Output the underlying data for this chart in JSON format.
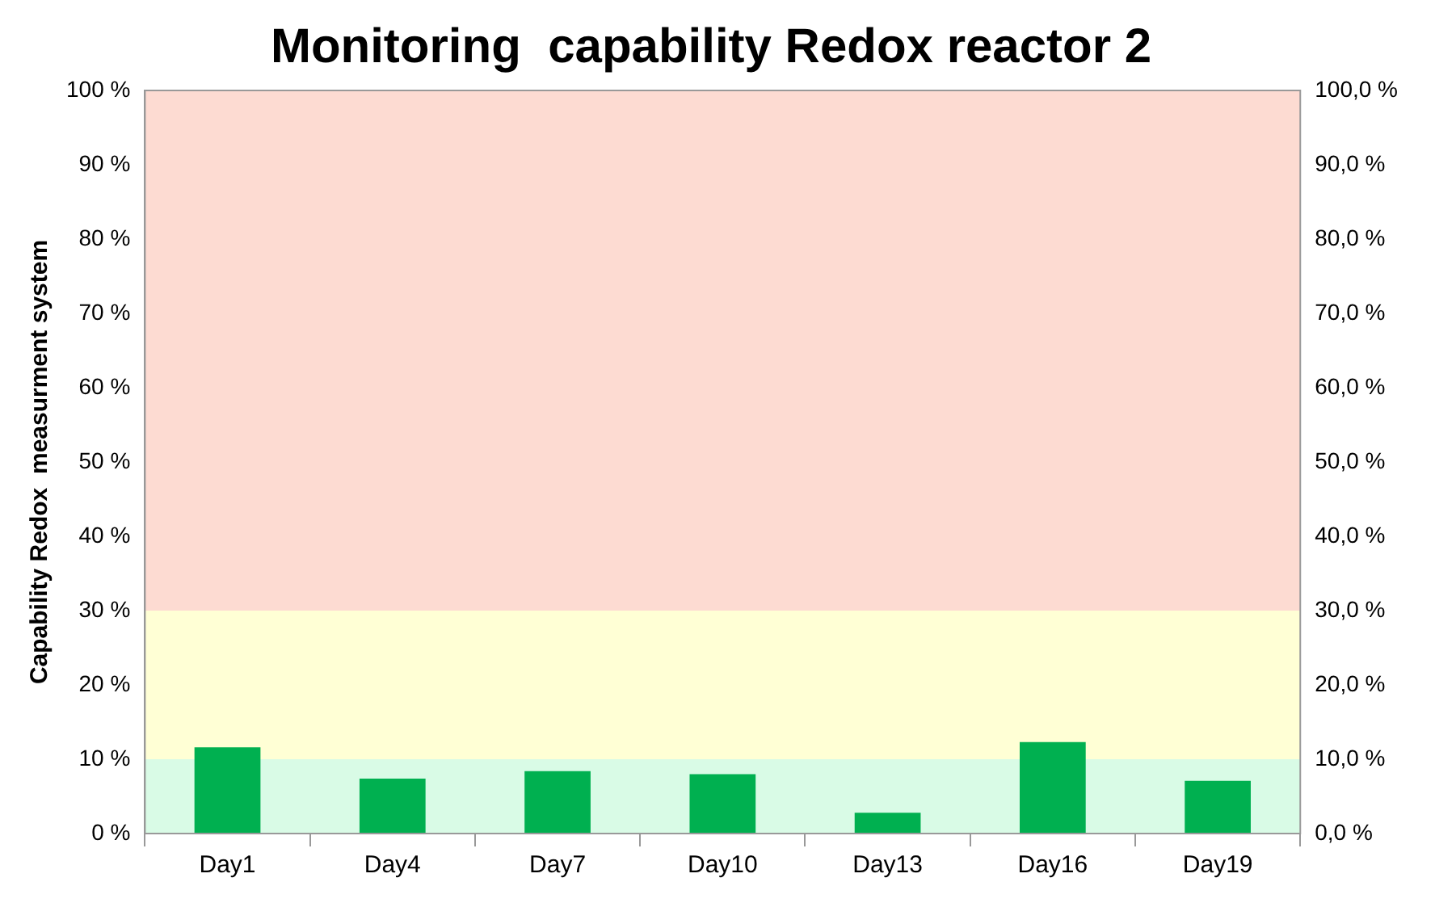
{
  "chart_data": {
    "type": "bar",
    "title": "Monitoring  capability Redox reactor 2",
    "ylabel": "Capability Redox  measurment system",
    "categories": [
      "Day1",
      "Day4",
      "Day7",
      "Day10",
      "Day13",
      "Day16",
      "Day19"
    ],
    "values": [
      11.6,
      7.4,
      8.4,
      8.0,
      2.8,
      12.3,
      7.1
    ],
    "color": "#00b050",
    "ylim": [
      0,
      100
    ],
    "yticks": [
      {
        "value": 0,
        "label": "0 %"
      },
      {
        "value": 10,
        "label": "10 %"
      },
      {
        "value": 20,
        "label": "20 %"
      },
      {
        "value": 30,
        "label": "30 %"
      },
      {
        "value": 40,
        "label": "40 %"
      },
      {
        "value": 50,
        "label": "50 %"
      },
      {
        "value": 60,
        "label": "60 %"
      },
      {
        "value": 70,
        "label": "70 %"
      },
      {
        "value": 80,
        "label": "80 %"
      },
      {
        "value": 90,
        "label": "90 %"
      },
      {
        "value": 100,
        "label": "100 %"
      }
    ],
    "y2lim": [
      0,
      100
    ],
    "y2ticks": [
      {
        "value": 0,
        "label": "0,0 %"
      },
      {
        "value": 10,
        "label": "10,0 %"
      },
      {
        "value": 20,
        "label": "20,0 %"
      },
      {
        "value": 30,
        "label": "30,0 %"
      },
      {
        "value": 40,
        "label": "40,0 %"
      },
      {
        "value": 50,
        "label": "50,0 %"
      },
      {
        "value": 60,
        "label": "60,0 %"
      },
      {
        "value": 70,
        "label": "70,0 %"
      },
      {
        "value": 80,
        "label": "80,0 %"
      },
      {
        "value": 90,
        "label": "90,0 %"
      },
      {
        "value": 100,
        "label": "100,0 %"
      }
    ],
    "bands": [
      {
        "axis": "y",
        "from": 0,
        "to": 10,
        "color": "#d9fbe6"
      },
      {
        "axis": "y",
        "from": 10,
        "to": 30,
        "color": "#ffffd5"
      },
      {
        "axis": "y",
        "from": 30,
        "to": 100,
        "color": "#fddbd2"
      }
    ],
    "grid": false,
    "legend": false
  }
}
